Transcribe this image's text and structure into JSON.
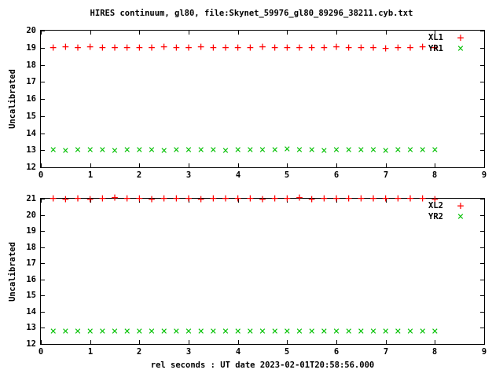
{
  "page": {
    "title": "HIRES continuum, gl80, file:Skynet_59976_gl80_89296_38211.cyb.txt",
    "xlabel_footer": "rel seconds : UT date 2023-02-01T20:58:56.000",
    "background": "#ffffff",
    "axis_color": "#000000"
  },
  "chart_data": [
    {
      "type": "scatter",
      "title": "",
      "xlabel": "",
      "ylabel": "Uncalibrated",
      "xlim": [
        0,
        9
      ],
      "ylim": [
        12,
        20
      ],
      "xticks": [
        0,
        1,
        2,
        3,
        4,
        5,
        6,
        7,
        8,
        9
      ],
      "yticks": [
        12,
        13,
        14,
        15,
        16,
        17,
        18,
        19,
        20
      ],
      "grid": false,
      "legend_position": "top-right",
      "series": [
        {
          "name": "XL1",
          "marker": "plus",
          "color": "#ff0000",
          "x": [
            0.25,
            0.5,
            0.75,
            1.0,
            1.25,
            1.5,
            1.75,
            2.0,
            2.25,
            2.5,
            2.75,
            3.0,
            3.25,
            3.5,
            3.75,
            4.0,
            4.25,
            4.5,
            4.75,
            5.0,
            5.25,
            5.5,
            5.75,
            6.0,
            6.25,
            6.5,
            6.75,
            7.0,
            7.25,
            7.5,
            7.75,
            8.0
          ],
          "y": [
            19.0,
            19.03,
            18.98,
            19.02,
            18.97,
            18.99,
            19.01,
            19.0,
            18.99,
            19.02,
            18.98,
            19.0,
            19.03,
            18.97,
            19.01,
            19.0,
            18.98,
            19.02,
            19.0,
            18.99,
            19.01,
            18.97,
            19.0,
            19.02,
            18.98,
            19.0,
            19.01,
            18.96,
            19.0,
            18.99,
            19.02,
            19.0
          ]
        },
        {
          "name": "YR1",
          "marker": "cross",
          "color": "#00c000",
          "x": [
            0.25,
            0.5,
            0.75,
            1.0,
            1.25,
            1.5,
            1.75,
            2.0,
            2.25,
            2.5,
            2.75,
            3.0,
            3.25,
            3.5,
            3.75,
            4.0,
            4.25,
            4.5,
            4.75,
            5.0,
            5.25,
            5.5,
            5.75,
            6.0,
            6.25,
            6.5,
            6.75,
            7.0,
            7.25,
            7.5,
            7.75,
            8.0
          ],
          "y": [
            13.0,
            12.98,
            13.01,
            12.99,
            13.0,
            12.97,
            13.0,
            12.99,
            13.02,
            12.98,
            13.0,
            13.01,
            12.99,
            13.0,
            12.98,
            13.0,
            13.02,
            12.99,
            13.0,
            13.05,
            12.99,
            13.0,
            12.98,
            13.01,
            13.0,
            12.99,
            13.0,
            12.98,
            13.0,
            13.01,
            12.99,
            13.0
          ]
        }
      ]
    },
    {
      "type": "scatter",
      "title": "",
      "xlabel": "rel seconds : UT date 2023-02-01T20:58:56.000",
      "ylabel": "Uncalibrated",
      "xlim": [
        0,
        9
      ],
      "ylim": [
        12,
        21
      ],
      "xticks": [
        0,
        1,
        2,
        3,
        4,
        5,
        6,
        7,
        8,
        9
      ],
      "yticks": [
        12,
        13,
        14,
        15,
        16,
        17,
        18,
        19,
        20,
        21
      ],
      "grid": false,
      "legend_position": "top-right",
      "series": [
        {
          "name": "XL2",
          "marker": "plus",
          "color": "#ff0000",
          "x": [
            0.25,
            0.5,
            0.75,
            1.0,
            1.25,
            1.5,
            1.75,
            2.0,
            2.25,
            2.5,
            2.75,
            3.0,
            3.25,
            3.5,
            3.75,
            4.0,
            4.25,
            4.5,
            4.75,
            5.0,
            5.25,
            5.5,
            5.75,
            6.0,
            6.25,
            6.5,
            6.75,
            7.0,
            7.25,
            7.5,
            7.75,
            8.0
          ],
          "y": [
            21.0,
            20.97,
            21.02,
            20.95,
            21.0,
            21.03,
            20.98,
            21.0,
            20.96,
            21.02,
            20.99,
            21.0,
            20.97,
            21.01,
            20.98,
            21.0,
            21.02,
            20.96,
            21.0,
            20.99,
            21.03,
            20.97,
            21.0,
            21.01,
            20.98,
            21.02,
            20.99,
            21.0,
            21.01,
            20.98,
            21.0,
            20.97
          ]
        },
        {
          "name": "YR2",
          "marker": "cross",
          "color": "#00c000",
          "x": [
            0.25,
            0.5,
            0.75,
            1.0,
            1.25,
            1.5,
            1.75,
            2.0,
            2.25,
            2.5,
            2.75,
            3.0,
            3.25,
            3.5,
            3.75,
            4.0,
            4.25,
            4.5,
            4.75,
            5.0,
            5.25,
            5.5,
            5.75,
            6.0,
            6.25,
            6.5,
            6.75,
            7.0,
            7.25,
            7.5,
            7.75,
            8.0
          ],
          "y": [
            12.78,
            12.8,
            12.77,
            12.79,
            12.78,
            12.76,
            12.8,
            12.78,
            12.77,
            12.79,
            12.78,
            12.8,
            12.76,
            12.78,
            12.79,
            12.77,
            12.78,
            12.8,
            12.78,
            12.77,
            12.79,
            12.78,
            12.76,
            12.8,
            12.78,
            12.79,
            12.77,
            12.78,
            12.8,
            12.77,
            12.79,
            12.78
          ]
        }
      ]
    }
  ]
}
